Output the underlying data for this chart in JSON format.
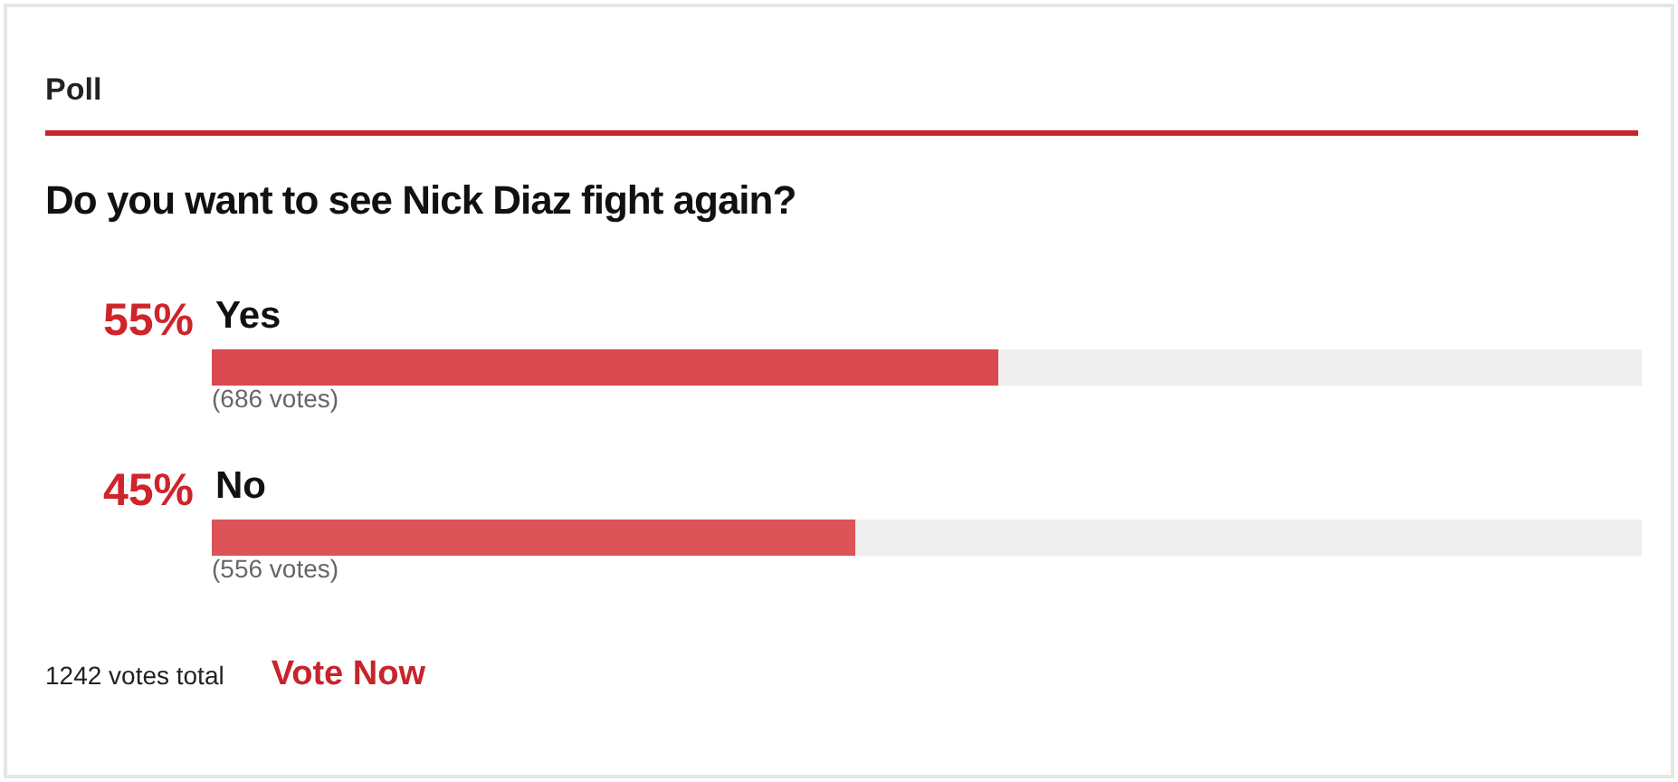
{
  "chart_data": {
    "type": "bar",
    "orientation": "horizontal",
    "title": "Do you want to see Nick Diaz fight again?",
    "categories": [
      "Yes",
      "No"
    ],
    "values": [
      55,
      45
    ],
    "colors": [
      "#d9494f",
      "#dc5458"
    ],
    "value_labels": [
      "55%",
      "45%"
    ],
    "xlim": [
      0,
      100
    ],
    "tick_labels": "y",
    "annotations": [
      "Poll",
      {
        "text": "(686 votes)",
        "y": "Yes"
      },
      {
        "text": "(556 votes)",
        "y": "No"
      },
      "1242 votes total",
      "Vote Now"
    ]
  }
}
